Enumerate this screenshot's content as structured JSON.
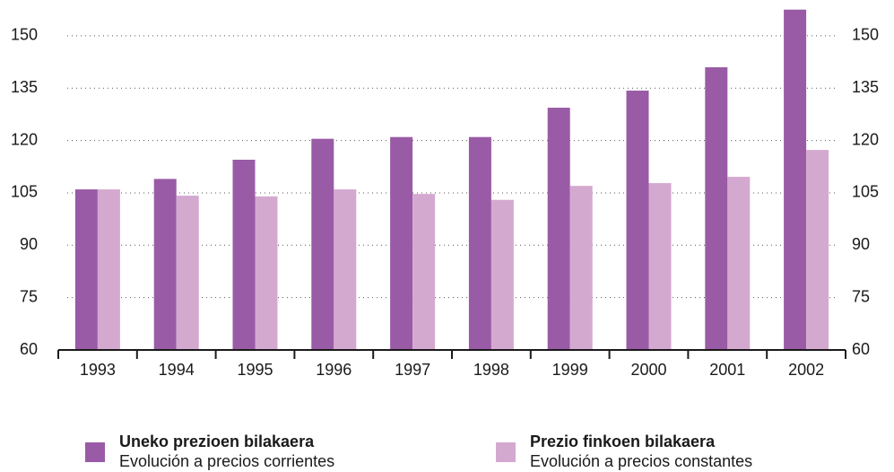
{
  "chart_data": {
    "type": "bar",
    "categories": [
      "1993",
      "1994",
      "1995",
      "1996",
      "1997",
      "1998",
      "1999",
      "2000",
      "2001",
      "2002"
    ],
    "series": [
      {
        "name": "Uneko prezioen bilakaera",
        "description": "Evolución a precios corrientes",
        "color": "#9a5ba6",
        "values": [
          106,
          109,
          114.5,
          120.5,
          121,
          121,
          129.4,
          134.3,
          141,
          157.5
        ]
      },
      {
        "name": "Prezio finkoen bilakaera",
        "description": "Evolución a precios constantes",
        "color": "#d4a9d0",
        "values": [
          106,
          104.2,
          104,
          106,
          104.7,
          103,
          107,
          107.8,
          109.6,
          117.3
        ]
      }
    ],
    "ylim": [
      60,
      160
    ],
    "yticks": [
      60,
      75,
      90,
      105,
      120,
      135,
      150
    ],
    "grid": true,
    "legend": "bottom"
  }
}
